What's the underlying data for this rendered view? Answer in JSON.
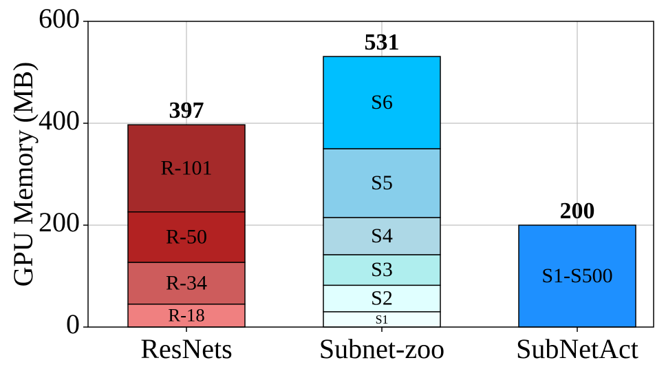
{
  "chart_data": {
    "type": "stacked-bar",
    "ylabel": "GPU Memory (MB)",
    "categories": [
      "ResNets",
      "Subnet-zoo",
      "SubNetAct"
    ],
    "series": [
      {
        "name": "R-18",
        "color": "#f08080",
        "values": [
          45,
          null,
          null
        ]
      },
      {
        "name": "R-34",
        "color": "#cd5c5c",
        "values": [
          82,
          null,
          null
        ]
      },
      {
        "name": "R-50",
        "color": "#b22222",
        "values": [
          99,
          null,
          null
        ]
      },
      {
        "name": "R-101",
        "color": "#a52a2a",
        "values": [
          171,
          null,
          null
        ]
      },
      {
        "name": "S1",
        "color": "#f0ffff",
        "values": [
          null,
          30,
          null
        ]
      },
      {
        "name": "S2",
        "color": "#e0ffff",
        "values": [
          null,
          52,
          null
        ]
      },
      {
        "name": "S3",
        "color": "#afeeee",
        "values": [
          null,
          60,
          null
        ]
      },
      {
        "name": "S4",
        "color": "#add8e6",
        "values": [
          null,
          73,
          null
        ]
      },
      {
        "name": "S5",
        "color": "#87ceeb",
        "values": [
          null,
          135,
          null
        ]
      },
      {
        "name": "S6",
        "color": "#00bfff",
        "values": [
          null,
          181,
          null
        ]
      },
      {
        "name": "S1-S500",
        "color": "#1e90ff",
        "values": [
          null,
          null,
          200
        ]
      }
    ],
    "totals": [
      397,
      531,
      200
    ],
    "ylim": [
      0,
      600
    ],
    "yticks": [
      0,
      200,
      400,
      600
    ],
    "grid": true
  }
}
